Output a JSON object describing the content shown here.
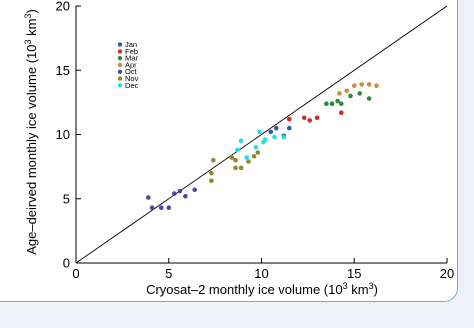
{
  "chart_data": {
    "type": "scatter",
    "title": "",
    "xlabel": "Cryosat–2 monthly ice volume (10",
    "xlabel_unit_exp": "3",
    "xlabel_unit_tail": " km",
    "xlabel_unit_exp2": "3",
    "xlabel_close": ")",
    "ylabel": "Age–deirved monthly ice volume (10",
    "ylabel_unit_exp": "3",
    "ylabel_unit_tail": " km",
    "ylabel_unit_exp2": "3",
    "ylabel_close": ")",
    "xlim": [
      0,
      20
    ],
    "ylim": [
      0,
      20
    ],
    "xticks": [
      0,
      5,
      10,
      15,
      20
    ],
    "yticks": [
      0,
      5,
      10,
      15,
      20
    ],
    "grid": false,
    "legend_position": "upper-left",
    "reference_line": "1:1",
    "series": [
      {
        "name": "Jan",
        "color": "#2d5fa8",
        "points": [
          [
            10.8,
            10.5
          ],
          [
            11.2,
            9.9
          ],
          [
            11.5,
            10.5
          ],
          [
            10.5,
            10.2
          ]
        ]
      },
      {
        "name": "Feb",
        "color": "#d42a2a",
        "points": [
          [
            11.5,
            11.2
          ],
          [
            12.3,
            11.3
          ],
          [
            12.6,
            11.1
          ],
          [
            13.0,
            11.3
          ],
          [
            14.3,
            11.7
          ]
        ]
      },
      {
        "name": "Mar",
        "color": "#2e8a3e",
        "points": [
          [
            13.5,
            12.4
          ],
          [
            13.8,
            12.4
          ],
          [
            14.1,
            12.6
          ],
          [
            14.3,
            12.4
          ],
          [
            14.8,
            13.0
          ],
          [
            15.3,
            13.2
          ],
          [
            15.8,
            12.8
          ]
        ]
      },
      {
        "name": "Apr",
        "color": "#c98d3e",
        "points": [
          [
            14.2,
            13.2
          ],
          [
            14.6,
            13.4
          ],
          [
            15.0,
            13.8
          ],
          [
            15.4,
            13.9
          ],
          [
            15.8,
            13.9
          ],
          [
            16.2,
            13.8
          ]
        ]
      },
      {
        "name": "Oct",
        "color": "#5145a3",
        "points": [
          [
            3.9,
            5.1
          ],
          [
            4.1,
            4.3
          ],
          [
            4.6,
            4.3
          ],
          [
            5.0,
            4.3
          ],
          [
            5.3,
            5.4
          ],
          [
            5.6,
            5.6
          ],
          [
            5.9,
            5.2
          ],
          [
            6.4,
            5.7
          ]
        ]
      },
      {
        "name": "Nov",
        "color": "#8f8a2c",
        "points": [
          [
            7.3,
            6.4
          ],
          [
            7.3,
            7.0
          ],
          [
            7.4,
            8.0
          ],
          [
            8.4,
            8.2
          ],
          [
            8.6,
            8.0
          ],
          [
            8.6,
            7.4
          ],
          [
            8.9,
            7.4
          ],
          [
            9.3,
            7.9
          ],
          [
            9.6,
            8.3
          ],
          [
            9.8,
            8.6
          ]
        ]
      },
      {
        "name": "Dec",
        "color": "#22e0e6",
        "points": [
          [
            8.7,
            8.8
          ],
          [
            8.9,
            9.5
          ],
          [
            9.2,
            8.2
          ],
          [
            9.7,
            9.0
          ],
          [
            9.9,
            10.2
          ],
          [
            10.1,
            9.4
          ],
          [
            10.2,
            9.6
          ],
          [
            10.7,
            9.8
          ],
          [
            11.2,
            9.8
          ]
        ]
      }
    ]
  }
}
